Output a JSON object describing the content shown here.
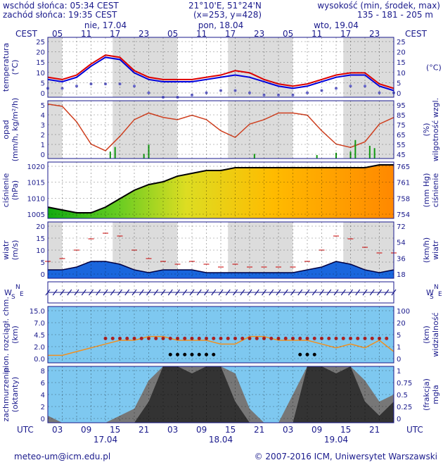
{
  "header": {
    "sunrise": "wschód słońca: 05:34 CEST",
    "sunset": "zachód słońca: 19:35 CEST",
    "coords": "21°10'E, 51°24'N",
    "grid": "(x=253,  y=428)",
    "height_label": "wysokość (min, środek, max)",
    "height_values": "135 - 181 - 205 m"
  },
  "time_axis": {
    "tz_top": "CEST",
    "tz_bottom": "UTC",
    "days": [
      "nie, 17.04",
      "pon, 18.04",
      "wto, 19.04"
    ],
    "bottom_days": [
      "17.04",
      "18.04",
      "19.04"
    ],
    "top_hours": [
      "05",
      "11",
      "17",
      "23",
      "05",
      "11",
      "17",
      "23",
      "05",
      "11",
      "17",
      "23"
    ],
    "bottom_hours": [
      "03",
      "09",
      "15",
      "21",
      "03",
      "09",
      "15",
      "21",
      "03",
      "09",
      "15",
      "21"
    ]
  },
  "panels": {
    "temperature": {
      "label_left": [
        "temperatura",
        "(°C)"
      ],
      "label_right": "(°C)",
      "ticks": [
        "25",
        "20",
        "15",
        "10",
        "5",
        "0"
      ]
    },
    "precip": {
      "label_left": [
        "opad",
        "(mm/h, kg/m²/h)"
      ],
      "label_right": [
        "(%)",
        "wilgotność wzgl."
      ],
      "ticks_left": [
        "5",
        "4",
        "3",
        "2",
        "1",
        "0"
      ],
      "ticks_right": [
        "95",
        "85",
        "75",
        "65",
        "55",
        "45"
      ]
    },
    "pressure": {
      "label_left": [
        "ciśnienie",
        "(hPa)"
      ],
      "label_right": [
        "(mm Hg)",
        "ciśnienie"
      ],
      "ticks_left": [
        "1020",
        "1015",
        "1010",
        "1005"
      ],
      "ticks_right": [
        "765",
        "761",
        "758",
        "754"
      ]
    },
    "wind": {
      "label_left": [
        "wiatr",
        "(m/s)"
      ],
      "label_right": [
        "(km/h)",
        "wiatr"
      ],
      "ticks_left": [
        "20",
        "15",
        "10",
        "5",
        "0"
      ],
      "ticks_right": [
        "72",
        "54",
        "36",
        "18"
      ]
    },
    "direction": {
      "label_left": "W",
      "label_right": "W",
      "compass": [
        "N",
        "S",
        "E"
      ]
    },
    "clouds_base": {
      "label_left": [
        "pion. rozciągł. chm.",
        "(km)"
      ],
      "label_right": [
        "(km)",
        "widzialność"
      ],
      "ticks_left": [
        "15.0",
        "7.0",
        "4.5",
        "2.0",
        "0.0"
      ],
      "ticks_right": [
        "100",
        "20",
        "5",
        "1",
        "0"
      ]
    },
    "cloud_cover": {
      "label_left": [
        "zachmurzenie",
        "(oktanty)"
      ],
      "label_right": [
        "(frakcja)",
        "mgła"
      ],
      "ticks_left": [
        "8",
        "6",
        "4",
        "2",
        "0"
      ],
      "ticks_right": [
        "1",
        "0.75",
        "0.5",
        "0.25",
        "0"
      ]
    }
  },
  "footer": {
    "email": "meteo-um@icm.edu.pl",
    "copyright": "© 2007-2016 ICM, Uniwersytet Warszawski"
  },
  "colors": {
    "frame": "#1a1a8c",
    "temp_red": "#dd0000",
    "temp_blue": "#0000dd",
    "humidity": "#d04020",
    "sky": "#7ec8f0",
    "orange_vis": "#f09020"
  },
  "chart_data": [
    {
      "type": "line",
      "name": "temperature",
      "x_hours": [
        0,
        3,
        6,
        9,
        12,
        15,
        18,
        21,
        24,
        27,
        30,
        33,
        36,
        39,
        42,
        45,
        48,
        51,
        54,
        57,
        60,
        63,
        66,
        69,
        72
      ],
      "series": [
        {
          "values": [
            9,
            8,
            10,
            15,
            19,
            18,
            12,
            9,
            8,
            8,
            8,
            9,
            10,
            12,
            11,
            8,
            6,
            5,
            6,
            8,
            10,
            11,
            11,
            6,
            4
          ]
        },
        {
          "values": [
            8,
            7,
            9,
            14,
            18,
            17,
            11,
            8,
            7,
            7,
            7,
            8,
            9,
            10,
            9,
            7,
            5,
            4,
            5,
            7,
            9,
            10,
            10,
            5,
            3
          ]
        },
        {
          "values": [
            4,
            4,
            5,
            6,
            6,
            6,
            5,
            2,
            0,
            0,
            1,
            2,
            3,
            3,
            2,
            1,
            1,
            1,
            2,
            3,
            4,
            5,
            5,
            2,
            2
          ]
        }
      ],
      "ylim": [
        0,
        27
      ]
    },
    {
      "type": "line",
      "name": "humidity_precip",
      "x_hours": [
        0,
        3,
        6,
        9,
        12,
        15,
        18,
        21,
        24,
        27,
        30,
        33,
        36,
        39,
        42,
        45,
        48,
        51,
        54,
        57,
        60,
        63,
        66,
        69,
        72
      ],
      "series": [
        {
          "values": [
            94,
            92,
            78,
            58,
            52,
            65,
            80,
            86,
            82,
            80,
            84,
            80,
            70,
            64,
            76,
            80,
            86,
            86,
            84,
            70,
            58,
            55,
            60,
            76,
            82
          ]
        }
      ],
      "precip_hours": [
        13,
        14,
        20,
        21,
        43,
        56,
        60,
        63,
        64,
        67,
        68
      ],
      "precip_values": [
        0.6,
        1.0,
        0.4,
        1.2,
        0.4,
        0.3,
        0.5,
        0.6,
        1.6,
        1.1,
        0.9
      ],
      "ylim_left": [
        0,
        5
      ],
      "ylim_right": [
        45,
        97
      ]
    },
    {
      "type": "area",
      "name": "pressure",
      "x_hours": [
        0,
        3,
        6,
        9,
        12,
        15,
        18,
        21,
        24,
        27,
        30,
        33,
        36,
        39,
        42,
        45,
        48,
        51,
        54,
        57,
        60,
        63,
        66,
        69,
        72
      ],
      "series": [
        {
          "values": [
            1006,
            1005,
            1004,
            1004,
            1006,
            1009,
            1012,
            1014,
            1015,
            1017,
            1018,
            1019,
            1019,
            1020,
            1020,
            1020,
            1020,
            1020,
            1020,
            1020,
            1020,
            1020,
            1020,
            1021,
            1021
          ]
        }
      ],
      "ylim": [
        1002,
        1022
      ]
    },
    {
      "type": "area",
      "name": "wind",
      "x_hours": [
        0,
        3,
        6,
        9,
        12,
        15,
        18,
        21,
        24,
        27,
        30,
        33,
        36,
        39,
        42,
        45,
        48,
        51,
        54,
        57,
        60,
        63,
        66,
        69,
        72
      ],
      "series": [
        {
          "values": [
            3,
            3,
            4,
            6,
            6,
            5,
            3,
            2,
            3,
            3,
            3,
            2,
            2,
            2,
            2,
            2,
            2,
            2,
            3,
            4,
            6,
            5,
            3,
            2,
            3
          ]
        },
        {
          "values": [
            6,
            7,
            10,
            14,
            16,
            15,
            10,
            7,
            6,
            5,
            6,
            5,
            4,
            5,
            4,
            4,
            4,
            4,
            6,
            10,
            15,
            14,
            11,
            9,
            9
          ]
        }
      ],
      "ylim": [
        0,
        20
      ]
    },
    {
      "type": "line",
      "name": "visibility",
      "x_hours": [
        0,
        3,
        6,
        9,
        12,
        15,
        18,
        21,
        24,
        27,
        30,
        33,
        36,
        39,
        42,
        45,
        48,
        51,
        54,
        57,
        60,
        63,
        66,
        69,
        72
      ],
      "series": [
        {
          "values": [
            2,
            2,
            3,
            4,
            5,
            6,
            6,
            7,
            7,
            6,
            6,
            6,
            5,
            5,
            7,
            7,
            6,
            6,
            6,
            5,
            4,
            5,
            4,
            6,
            3
          ]
        }
      ],
      "ylim": [
        0,
        15
      ]
    },
    {
      "type": "area",
      "name": "cloud_cover",
      "x_hours": [
        0,
        3,
        6,
        9,
        12,
        15,
        18,
        21,
        24,
        27,
        30,
        33,
        36,
        39,
        42,
        45,
        48,
        51,
        54,
        57,
        60,
        63,
        66,
        69,
        72
      ],
      "series": [
        {
          "values": [
            0,
            0,
            0,
            0,
            0,
            0,
            0,
            3,
            8,
            8,
            7,
            8,
            8,
            3,
            0,
            0,
            0,
            0,
            8,
            8,
            7,
            8,
            3,
            1,
            3
          ]
        },
        {
          "values": [
            1,
            0,
            0,
            0,
            0,
            1,
            2,
            6,
            8,
            8,
            8,
            8,
            8,
            7,
            2,
            0,
            0,
            4,
            8,
            8,
            8,
            8,
            6,
            3,
            4
          ]
        }
      ],
      "ylim": [
        0,
        8
      ]
    }
  ]
}
